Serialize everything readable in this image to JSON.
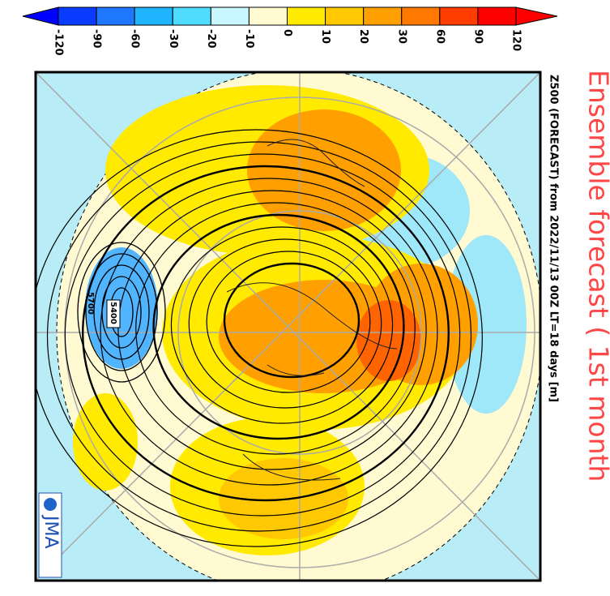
{
  "colorbar": {
    "labels": [
      "-120",
      "-90",
      "-60",
      "-30",
      "-20",
      "-10",
      "0",
      "10",
      "20",
      "30",
      "60",
      "90",
      "120"
    ],
    "colors": [
      "#0000ff",
      "#0a3cff",
      "#1e78ff",
      "#1eb4ff",
      "#50dcff",
      "#c8f6ff",
      "#fffad2",
      "#ffea00",
      "#ffc800",
      "#ffa000",
      "#ff7800",
      "#ff3c00",
      "#ff0000",
      "#ff0000"
    ]
  },
  "title": "Ensemble forecast ( 1st month",
  "subtitle": "Z500  (FORECAST)   from   2022/11/13  00Z  LT=18  days   [m]",
  "contour_labels": [
    "5400",
    "5700"
  ],
  "logo": "JMA"
}
